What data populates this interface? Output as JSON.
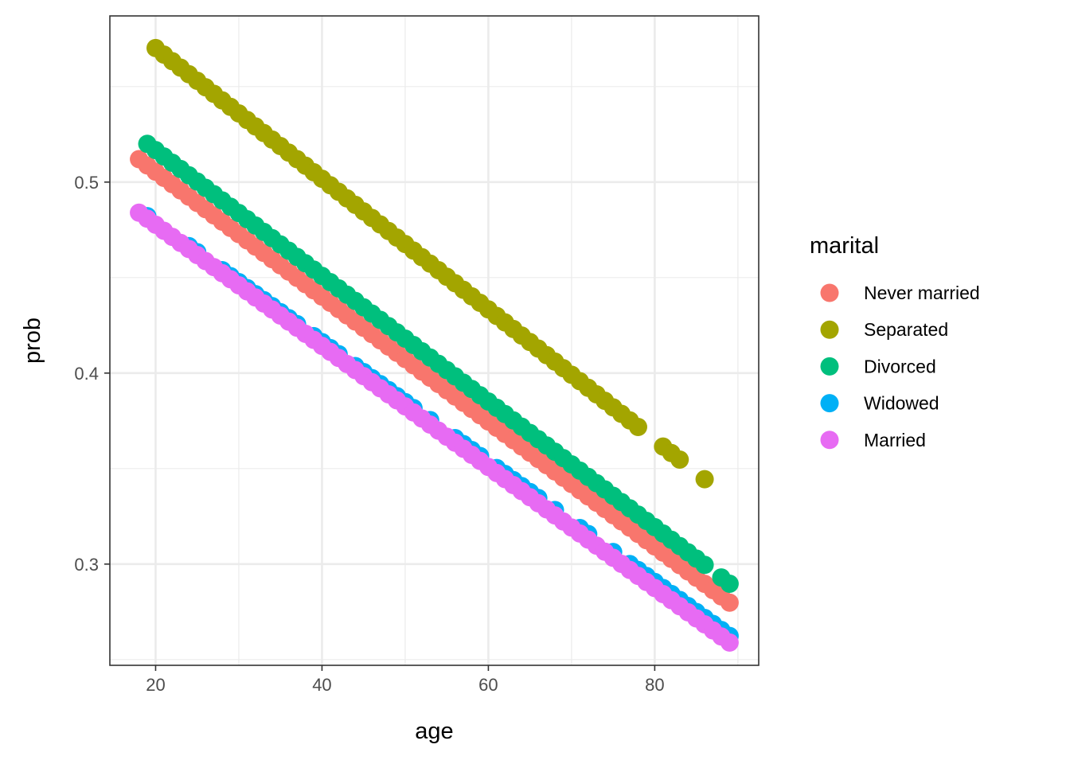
{
  "chart_data": {
    "type": "scatter",
    "xlabel": "age",
    "ylabel": "prob",
    "xlim": [
      14.5,
      92.5
    ],
    "ylim": [
      0.247,
      0.587
    ],
    "x_ticks": [
      20,
      40,
      60,
      80
    ],
    "x_tick_labels": [
      "20",
      "40",
      "60",
      "80"
    ],
    "y_ticks": [
      0.3,
      0.4,
      0.5
    ],
    "y_tick_labels": [
      "0.3",
      "0.4",
      "0.5"
    ],
    "y_minor_ticks": [
      0.25,
      0.35,
      0.45,
      0.55
    ],
    "x_minor_ticks": [
      30,
      50,
      70,
      90
    ],
    "grid": true,
    "theme": "bw",
    "legend": {
      "title": "marital",
      "placement": "right",
      "entries": [
        "Never married",
        "Separated",
        "Divorced",
        "Widowed",
        "Married"
      ]
    },
    "series": [
      {
        "name": "Never married",
        "color": "#F8766D",
        "x": [
          18,
          19,
          20,
          21,
          22,
          23,
          24,
          25,
          26,
          27,
          28,
          29,
          30,
          31,
          32,
          33,
          34,
          35,
          36,
          37,
          38,
          39,
          40,
          41,
          42,
          43,
          44,
          45,
          46,
          47,
          48,
          49,
          50,
          51,
          52,
          53,
          54,
          55,
          56,
          57,
          58,
          59,
          60,
          61,
          62,
          63,
          64,
          65,
          66,
          67,
          68,
          69,
          70,
          71,
          72,
          73,
          74,
          75,
          76,
          77,
          78,
          79,
          80,
          81,
          82,
          83,
          84,
          85,
          86,
          87,
          88,
          89
        ],
        "slope_per_year": -0.00327,
        "intercept_at_18": 0.512
      },
      {
        "name": "Separated",
        "color": "#A3A500",
        "x": [
          20,
          21,
          22,
          23,
          24,
          25,
          26,
          27,
          28,
          29,
          30,
          31,
          32,
          33,
          34,
          35,
          36,
          37,
          38,
          39,
          40,
          41,
          42,
          43,
          44,
          45,
          46,
          47,
          48,
          49,
          50,
          51,
          52,
          53,
          54,
          55,
          56,
          57,
          58,
          59,
          60,
          61,
          62,
          63,
          64,
          65,
          66,
          67,
          68,
          69,
          70,
          71,
          72,
          73,
          74,
          75,
          76,
          77,
          78,
          81,
          82,
          83,
          86
        ],
        "slope_per_year": -0.00342,
        "intercept_at_18": 0.577
      },
      {
        "name": "Divorced",
        "color": "#00BF7D",
        "x": [
          19,
          20,
          21,
          22,
          23,
          24,
          25,
          26,
          27,
          28,
          29,
          30,
          31,
          32,
          33,
          34,
          35,
          36,
          37,
          38,
          39,
          40,
          41,
          42,
          43,
          44,
          45,
          46,
          47,
          48,
          49,
          50,
          51,
          52,
          53,
          54,
          55,
          56,
          57,
          58,
          59,
          60,
          61,
          62,
          63,
          64,
          65,
          66,
          67,
          68,
          69,
          70,
          71,
          72,
          73,
          74,
          75,
          76,
          77,
          78,
          79,
          80,
          81,
          82,
          83,
          84,
          85,
          86,
          88,
          89
        ],
        "slope_per_year": -0.00329,
        "intercept_at_18": 0.5233
      },
      {
        "name": "Widowed",
        "color": "#00B0F6",
        "x": [
          19,
          24,
          25,
          28,
          29,
          30,
          31,
          32,
          33,
          34,
          35,
          36,
          37,
          39,
          40,
          41,
          42,
          44,
          45,
          46,
          47,
          48,
          49,
          50,
          51,
          53,
          56,
          57,
          58,
          59,
          61,
          62,
          63,
          64,
          65,
          66,
          68,
          71,
          72,
          75,
          77,
          78,
          79,
          80,
          81,
          82,
          83,
          84,
          85,
          86,
          87,
          88,
          89
        ],
        "slope_per_year": -0.00314,
        "intercept_at_18": 0.4853
      },
      {
        "name": "Married",
        "color": "#E76BF3",
        "x": [
          18,
          19,
          20,
          21,
          22,
          23,
          24,
          25,
          26,
          27,
          28,
          29,
          30,
          31,
          32,
          33,
          34,
          35,
          36,
          37,
          38,
          39,
          40,
          41,
          42,
          43,
          44,
          45,
          46,
          47,
          48,
          49,
          50,
          51,
          52,
          53,
          54,
          55,
          56,
          57,
          58,
          59,
          60,
          61,
          62,
          63,
          64,
          65,
          66,
          67,
          68,
          69,
          70,
          71,
          72,
          73,
          74,
          75,
          76,
          77,
          78,
          79,
          80,
          81,
          82,
          83,
          84,
          85,
          86,
          87,
          88,
          89
        ],
        "slope_per_year": -0.00317,
        "intercept_at_18": 0.484
      }
    ]
  }
}
